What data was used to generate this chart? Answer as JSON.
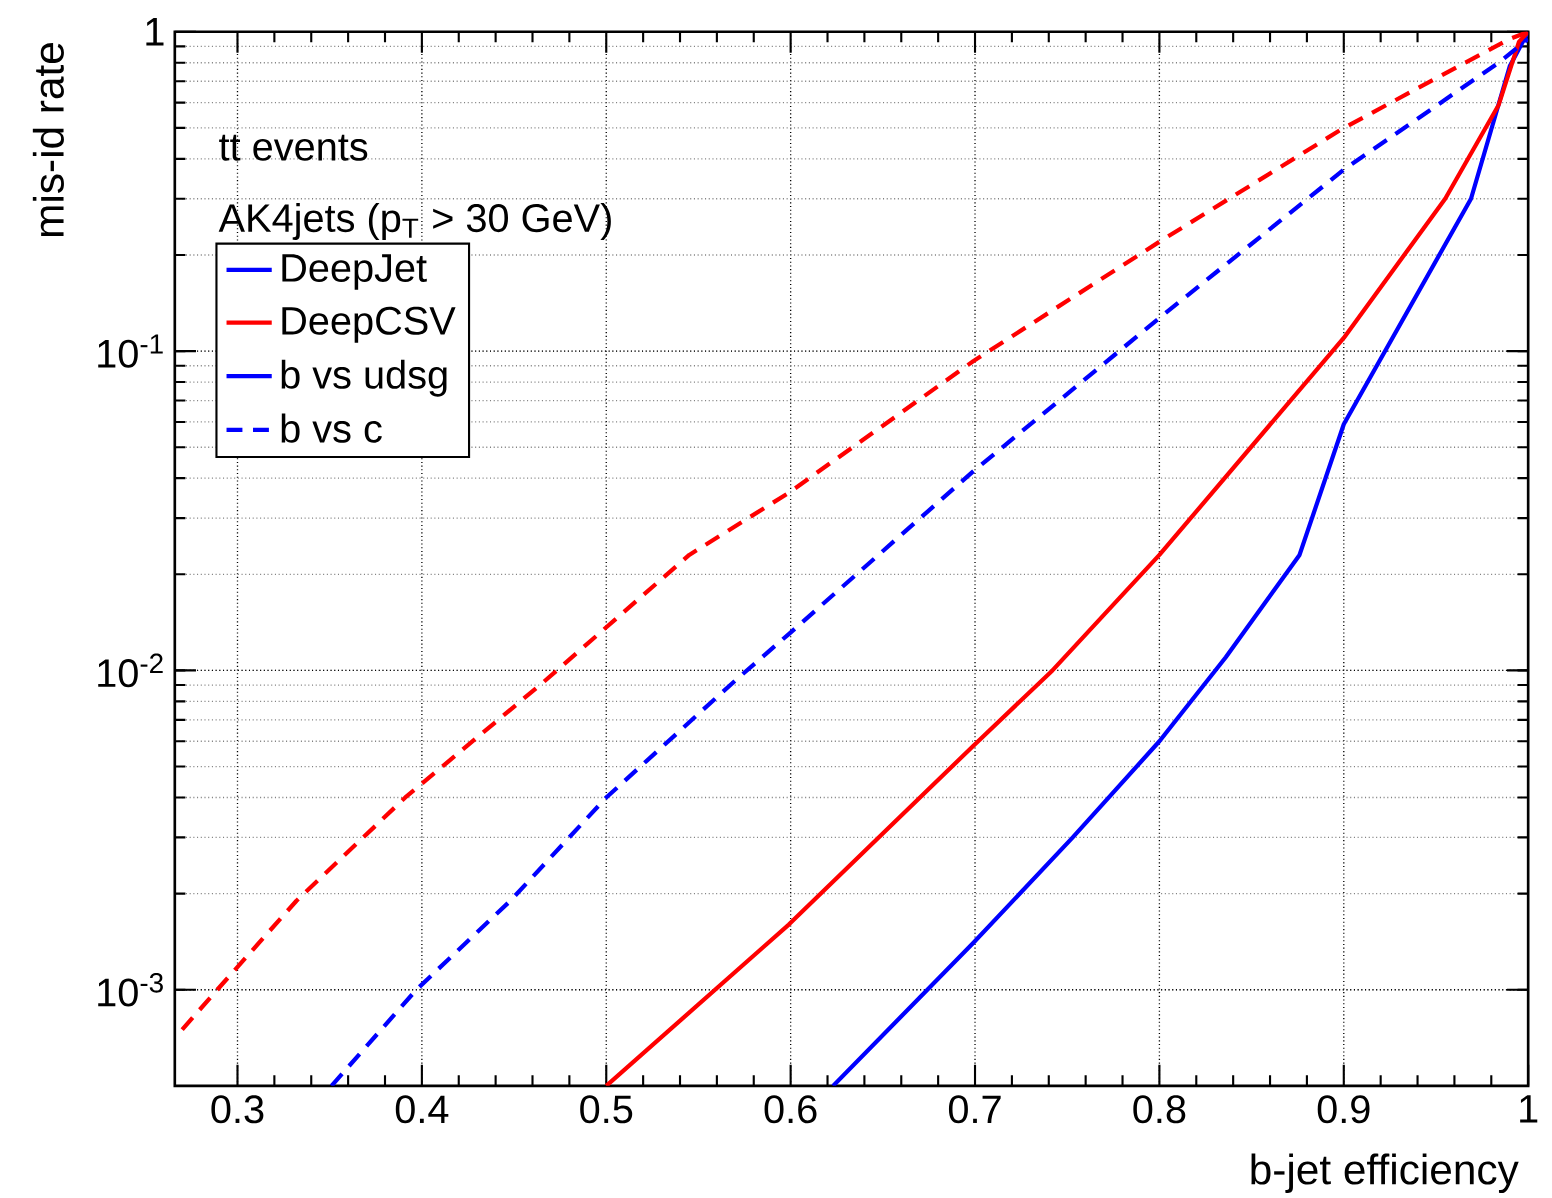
{
  "chart_data": {
    "type": "line",
    "xlabel": "b-jet efficiency",
    "ylabel": "mis-id rate",
    "annotations": [
      "tt events",
      "AK4jets (p$_{T}$ > 30 GeV)",
      "b vs udsg"
    ],
    "log": "y",
    "grid": true,
    "legend": "top left",
    "marker": "none",
    "xlim": [
      0.266,
      1
    ],
    "ylim": [
      0.0005,
      1
    ],
    "xticks": [
      0.3,
      0.4,
      0.5,
      0.6,
      0.7,
      0.8,
      0.9,
      1
    ],
    "yticks": [
      {
        "value": 0.001,
        "label": "10$^{-3}$"
      },
      {
        "value": 0.01,
        "label": "10$^{-2}$"
      },
      {
        "value": 0.1,
        "label": "10$^{-1}$"
      },
      1
    ],
    "series": [
      {
        "name": "DeepJet",
        "color": "#0000ff",
        "line_style": "solid",
        "x": [
          0.623,
          0.699,
          0.753,
          0.8,
          0.836,
          0.876,
          0.9,
          0.969,
          0.99,
          1.0
        ],
        "values": [
          0.0005,
          0.0014,
          0.003,
          0.006,
          0.011,
          0.023,
          0.059,
          0.3,
          0.78,
          1
        ]
      },
      {
        "name": "DeepCSV",
        "color": "#ff0000",
        "line_style": "solid",
        "x": [
          0.5,
          0.599,
          0.699,
          0.742,
          0.8,
          0.9,
          0.955,
          0.984,
          0.995,
          1.0
        ],
        "values": [
          0.0005,
          0.0016,
          0.0058,
          0.01,
          0.023,
          0.11,
          0.3,
          0.59,
          0.93,
          1
        ]
      },
      {
        "name": "b vs c",
        "color": "#0000ff",
        "line_style": "dashed",
        "x": [
          0.351,
          0.397,
          0.448,
          0.5,
          0.57,
          0.599,
          0.699,
          0.8,
          0.9,
          0.984,
          1.0
        ],
        "values": [
          0.0005,
          0.001,
          0.0019,
          0.004,
          0.0093,
          0.013,
          0.042,
          0.127,
          0.37,
          0.8,
          0.95
        ]
      },
      {
        "color": "#ff0000",
        "line_style": "dashed",
        "x": [
          0.27,
          0.289,
          0.332,
          0.391,
          0.466,
          0.545,
          0.599,
          0.699,
          0.8,
          0.9,
          0.99,
          1.0
        ],
        "values": [
          0.00075,
          0.001,
          0.0019,
          0.004,
          0.0092,
          0.023,
          0.036,
          0.093,
          0.22,
          0.5,
          0.95,
          1
        ]
      }
    ]
  }
}
